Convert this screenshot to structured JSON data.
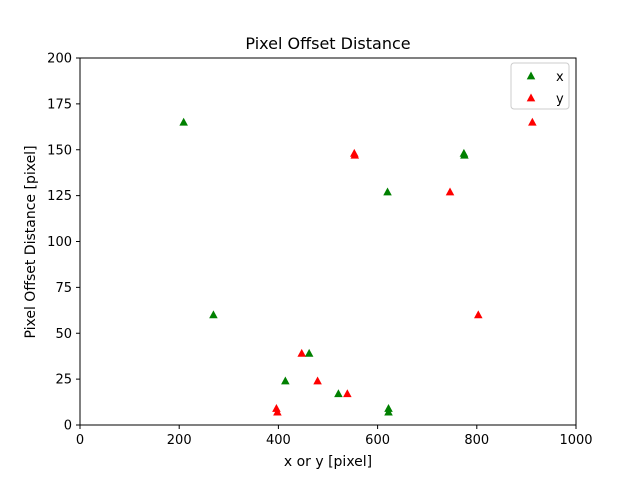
{
  "chart_data": {
    "type": "scatter",
    "title": "Pixel Offset Distance",
    "xlabel": "x or y [pixel]",
    "ylabel": "Pixel Offset Distance [pixel]",
    "xlim": [
      0,
      1000
    ],
    "ylim": [
      0,
      200
    ],
    "xticks": [
      "0",
      "200",
      "400",
      "600",
      "800",
      "1000"
    ],
    "yticks": [
      "0",
      "25",
      "50",
      "75",
      "100",
      "125",
      "150",
      "175",
      "200"
    ],
    "grid": false,
    "legend_position": "top-right",
    "marker": "triangle-up",
    "series": [
      {
        "name": "x",
        "color": "#008000",
        "points": [
          [
            209,
            165
          ],
          [
            269,
            60
          ],
          [
            414,
            24
          ],
          [
            462,
            39
          ],
          [
            521,
            17
          ],
          [
            620,
            127
          ],
          [
            622,
            9
          ],
          [
            622,
            7
          ],
          [
            774,
            148
          ],
          [
            775,
            147
          ]
        ]
      },
      {
        "name": "y",
        "color": "#ff0000",
        "points": [
          [
            396,
            9
          ],
          [
            398,
            7
          ],
          [
            447,
            39
          ],
          [
            479,
            24
          ],
          [
            539,
            17
          ],
          [
            553,
            148
          ],
          [
            554,
            147
          ],
          [
            746,
            127
          ],
          [
            803,
            60
          ],
          [
            912,
            165
          ]
        ]
      }
    ]
  }
}
